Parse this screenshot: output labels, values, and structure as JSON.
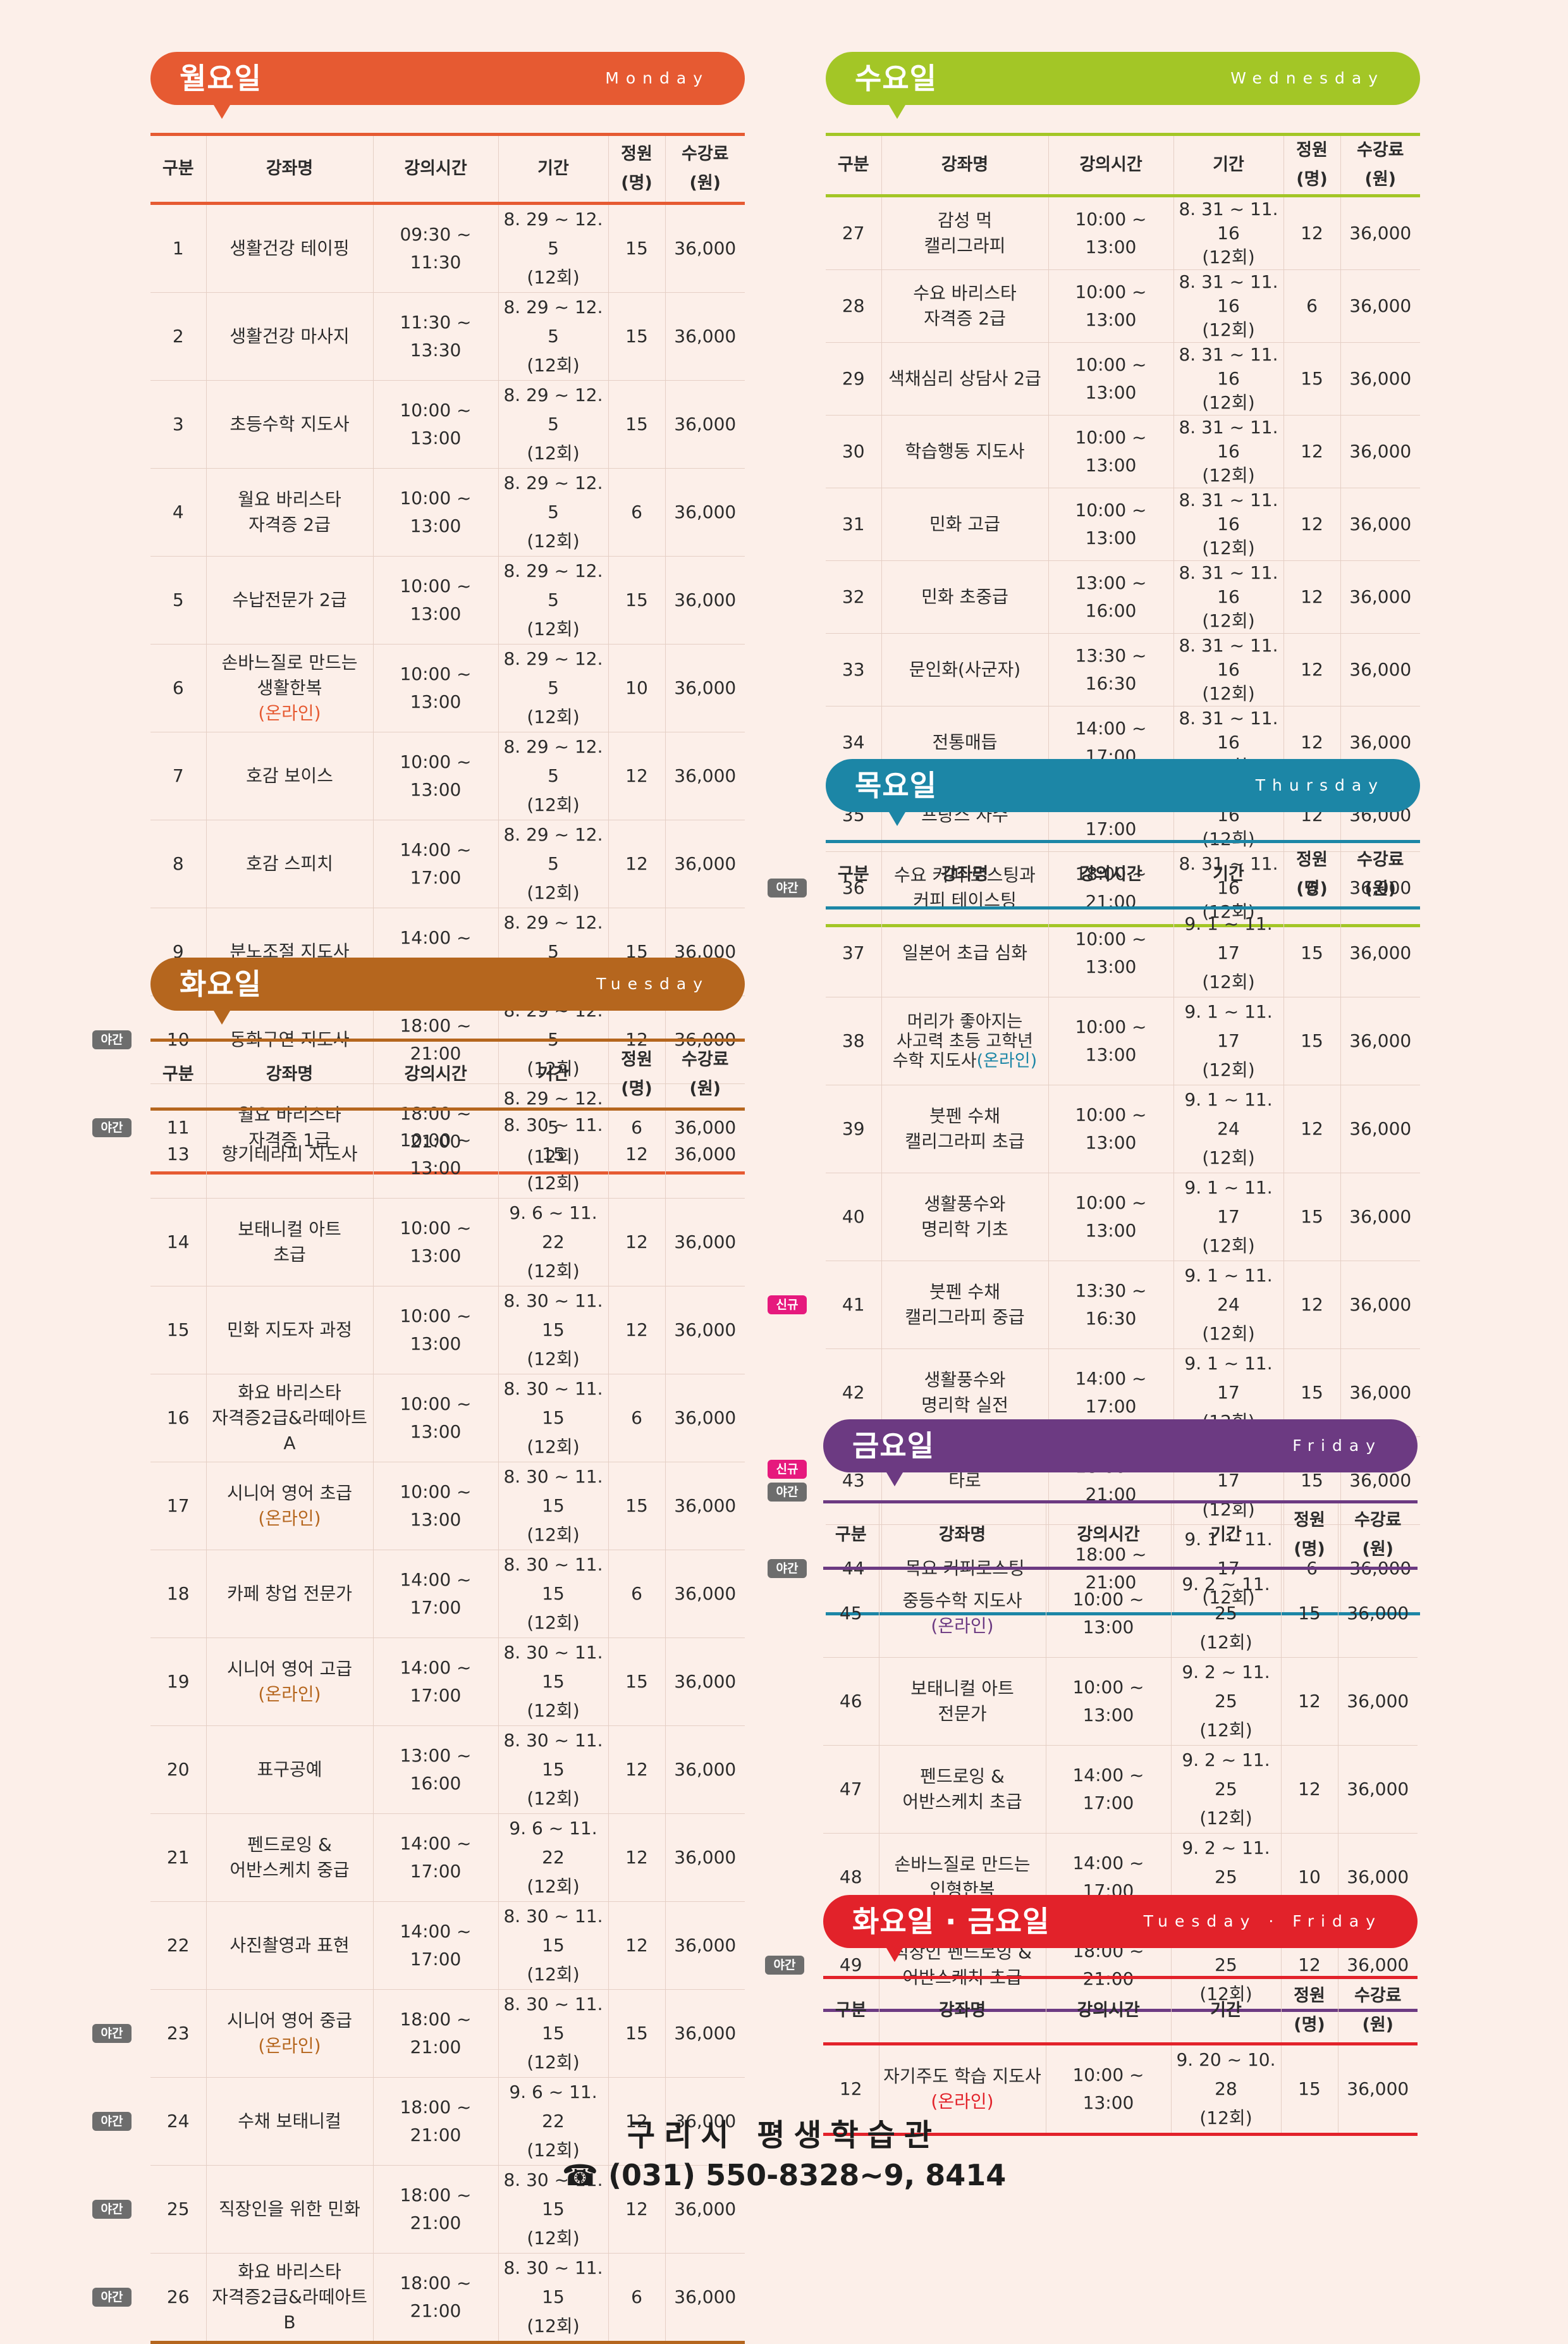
{
  "days": [
    {
      "id": "monday",
      "ko": "월요일",
      "en": "Monday",
      "color": "#e65a32",
      "online_color": "#e65a32",
      "headers": [
        "구분",
        "강좌명",
        "강의시간",
        "기간",
        "정원\n(명)",
        "수강료\n(원)"
      ],
      "rows": [
        {
          "badges": [],
          "no": "1",
          "name": "생활건강 테이핑",
          "time": "09:30 ~ 11:30",
          "period": "8. 29 ~ 12. 5\n(12회)",
          "cap": "15",
          "fee": "36,000"
        },
        {
          "badges": [],
          "no": "2",
          "name": "생활건강 마사지",
          "time": "11:30 ~ 13:30",
          "period": "8. 29 ~ 12. 5\n(12회)",
          "cap": "15",
          "fee": "36,000"
        },
        {
          "badges": [],
          "no": "3",
          "name": "초등수학 지도사",
          "time": "10:00 ~ 13:00",
          "period": "8. 29 ~ 12. 5\n(12회)",
          "cap": "15",
          "fee": "36,000"
        },
        {
          "badges": [],
          "no": "4",
          "name": "월요 바리스타\n자격증 2급",
          "time": "10:00 ~ 13:00",
          "period": "8. 29 ~ 12. 5\n(12회)",
          "cap": "6",
          "fee": "36,000"
        },
        {
          "badges": [],
          "no": "5",
          "name": "수납전문가 2급",
          "time": "10:00 ~ 13:00",
          "period": "8. 29 ~ 12. 5\n(12회)",
          "cap": "15",
          "fee": "36,000"
        },
        {
          "badges": [],
          "no": "6",
          "name": "손바느질로 만드는\n생활한복",
          "online": "(온라인)",
          "time": "10:00 ~ 13:00",
          "period": "8. 29 ~ 12. 5\n(12회)",
          "cap": "10",
          "fee": "36,000"
        },
        {
          "badges": [],
          "no": "7",
          "name": "호감 보이스",
          "time": "10:00 ~ 13:00",
          "period": "8. 29 ~ 12. 5\n(12회)",
          "cap": "12",
          "fee": "36,000"
        },
        {
          "badges": [],
          "no": "8",
          "name": "호감 스피치",
          "time": "14:00 ~ 17:00",
          "period": "8. 29 ~ 12. 5\n(12회)",
          "cap": "12",
          "fee": "36,000"
        },
        {
          "badges": [],
          "no": "9",
          "name": "분노조절 지도사",
          "time": "14:00 ~ 17:00",
          "period": "8. 29 ~ 12. 5\n(12회)",
          "cap": "15",
          "fee": "36,000"
        },
        {
          "badges": [
            "야간"
          ],
          "no": "10",
          "name": "동화구연 지도사",
          "time": "18:00 ~ 21:00",
          "period": "8. 29 ~ 12. 5\n(12회)",
          "cap": "12",
          "fee": "36,000"
        },
        {
          "badges": [
            "야간"
          ],
          "no": "11",
          "name": "월요 바리스타\n자격증 1급",
          "time": "18:00 ~ 21:00",
          "period": "8. 29 ~ 12. 5\n(12회)",
          "cap": "6",
          "fee": "36,000"
        }
      ]
    },
    {
      "id": "tuesday",
      "ko": "화요일",
      "en": "Tuesday",
      "color": "#b5661e",
      "online_color": "#b5661e",
      "headers": [
        "구분",
        "강좌명",
        "강의시간",
        "기간",
        "정원\n(명)",
        "수강료\n(원)"
      ],
      "rows": [
        {
          "badges": [],
          "no": "13",
          "name": "향기테라피 지도사",
          "time": "10:00 ~ 13:00",
          "period": "8. 30 ~ 11. 15\n(12회)",
          "cap": "12",
          "fee": "36,000"
        },
        {
          "badges": [],
          "no": "14",
          "name": "보태니컬 아트\n초급",
          "time": "10:00 ~ 13:00",
          "period": "9. 6 ~ 11. 22\n(12회)",
          "cap": "12",
          "fee": "36,000"
        },
        {
          "badges": [],
          "no": "15",
          "name": "민화 지도자 과정",
          "time": "10:00 ~ 13:00",
          "period": "8. 30 ~ 11. 15\n(12회)",
          "cap": "12",
          "fee": "36,000"
        },
        {
          "badges": [],
          "no": "16",
          "name": "화요 바리스타\n자격증2급&라떼아트A",
          "time": "10:00 ~ 13:00",
          "period": "8. 30 ~ 11. 15\n(12회)",
          "cap": "6",
          "fee": "36,000"
        },
        {
          "badges": [],
          "no": "17",
          "name": "시니어 영어 초급",
          "online": "(온라인)",
          "time": "10:00 ~ 13:00",
          "period": "8. 30 ~ 11. 15\n(12회)",
          "cap": "15",
          "fee": "36,000"
        },
        {
          "badges": [],
          "no": "18",
          "name": "카페 창업 전문가",
          "time": "14:00 ~ 17:00",
          "period": "8. 30 ~ 11. 15\n(12회)",
          "cap": "6",
          "fee": "36,000"
        },
        {
          "badges": [],
          "no": "19",
          "name": "시니어 영어 고급",
          "online": "(온라인)",
          "time": "14:00 ~ 17:00",
          "period": "8. 30 ~ 11. 15\n(12회)",
          "cap": "15",
          "fee": "36,000"
        },
        {
          "badges": [],
          "no": "20",
          "name": "표구공예",
          "time": "13:00 ~ 16:00",
          "period": "8. 30 ~ 11. 15\n(12회)",
          "cap": "12",
          "fee": "36,000"
        },
        {
          "badges": [],
          "no": "21",
          "name": "펜드로잉 &\n어반스케치 중급",
          "time": "14:00 ~ 17:00",
          "period": "9. 6 ~ 11. 22\n(12회)",
          "cap": "12",
          "fee": "36,000"
        },
        {
          "badges": [],
          "no": "22",
          "name": "사진촬영과 표현",
          "time": "14:00 ~ 17:00",
          "period": "8. 30 ~ 11. 15\n(12회)",
          "cap": "12",
          "fee": "36,000"
        },
        {
          "badges": [
            "야간"
          ],
          "no": "23",
          "name": "시니어 영어 중급",
          "online": "(온라인)",
          "time": "18:00 ~ 21:00",
          "period": "8. 30 ~ 11. 15\n(12회)",
          "cap": "15",
          "fee": "36,000"
        },
        {
          "badges": [
            "야간"
          ],
          "no": "24",
          "name": "수채 보태니컬",
          "time": "18:00 ~ 21:00",
          "period": "9. 6 ~ 11. 22\n(12회)",
          "cap": "12",
          "fee": "36,000"
        },
        {
          "badges": [
            "야간"
          ],
          "no": "25",
          "name": "직장인을 위한 민화",
          "time": "18:00 ~ 21:00",
          "period": "8. 30 ~ 11. 15\n(12회)",
          "cap": "12",
          "fee": "36,000"
        },
        {
          "badges": [
            "야간"
          ],
          "no": "26",
          "name": "화요 바리스타\n자격증2급&라떼아트B",
          "time": "18:00 ~ 21:00",
          "period": "8. 30 ~ 11. 15\n(12회)",
          "cap": "6",
          "fee": "36,000"
        }
      ]
    },
    {
      "id": "wednesday",
      "ko": "수요일",
      "en": "Wednesday",
      "color": "#a3c626",
      "online_color": "#a3c626",
      "headers": [
        "구분",
        "강좌명",
        "강의시간",
        "기간",
        "정원\n(명)",
        "수강료\n(원)"
      ],
      "rows": [
        {
          "badges": [],
          "no": "27",
          "name": "감성 먹\n캘리그라피",
          "time": "10:00 ~ 13:00",
          "period": "8. 31 ~ 11. 16\n(12회)",
          "cap": "12",
          "fee": "36,000"
        },
        {
          "badges": [],
          "no": "28",
          "name": "수요 바리스타\n자격증 2급",
          "time": "10:00 ~ 13:00",
          "period": "8. 31 ~ 11. 16\n(12회)",
          "cap": "6",
          "fee": "36,000"
        },
        {
          "badges": [],
          "no": "29",
          "name": "색채심리 상담사 2급",
          "time": "10:00 ~ 13:00",
          "period": "8. 31 ~ 11. 16\n(12회)",
          "cap": "15",
          "fee": "36,000"
        },
        {
          "badges": [],
          "no": "30",
          "name": "학습행동 지도사",
          "time": "10:00 ~ 13:00",
          "period": "8. 31 ~ 11. 16\n(12회)",
          "cap": "12",
          "fee": "36,000"
        },
        {
          "badges": [],
          "no": "31",
          "name": "민화 고급",
          "time": "10:00 ~ 13:00",
          "period": "8. 31 ~ 11. 16\n(12회)",
          "cap": "12",
          "fee": "36,000"
        },
        {
          "badges": [],
          "no": "32",
          "name": "민화 초중급",
          "time": "13:00 ~ 16:00",
          "period": "8. 31 ~ 11. 16\n(12회)",
          "cap": "12",
          "fee": "36,000"
        },
        {
          "badges": [],
          "no": "33",
          "name": "문인화(사군자)",
          "time": "13:30 ~ 16:30",
          "period": "8. 31 ~ 11. 16\n(12회)",
          "cap": "12",
          "fee": "36,000"
        },
        {
          "badges": [],
          "no": "34",
          "name": "전통매듭",
          "time": "14:00 ~ 17:00",
          "period": "8. 31 ~ 11. 16\n(12회)",
          "cap": "12",
          "fee": "36,000"
        },
        {
          "badges": [],
          "no": "35",
          "name": "프랑스 자수",
          "time": "14:00 ~ 17:00",
          "period": "8. 31 ~ 11. 16\n(12회)",
          "cap": "12",
          "fee": "36,000"
        },
        {
          "badges": [
            "야간"
          ],
          "no": "36",
          "name": "수요 커피 로스팅과\n커피 테이스팅",
          "time": "18:00 ~ 21:00",
          "period": "8. 31 ~ 11. 16\n(12회)",
          "cap": "6",
          "fee": "36,000"
        }
      ]
    },
    {
      "id": "thursday",
      "ko": "목요일",
      "en": "Thursday",
      "color": "#1c86a6",
      "online_color": "#1c86a6",
      "headers": [
        "구분",
        "강좌명",
        "강의시간",
        "기간",
        "정원\n(명)",
        "수강료\n(원)"
      ],
      "rows": [
        {
          "badges": [],
          "no": "37",
          "name": "일본어 초급 심화",
          "time": "10:00 ~ 13:00",
          "period": "9. 1 ~ 11. 17\n(12회)",
          "cap": "15",
          "fee": "36,000"
        },
        {
          "badges": [],
          "no": "38",
          "name": "머리가 좋아지는\n사고력 초등 고학년\n수학 지도사",
          "online": "(온라인)",
          "online_inline": true,
          "time": "10:00 ~ 13:00",
          "period": "9. 1 ~ 11. 17\n(12회)",
          "cap": "15",
          "fee": "36,000"
        },
        {
          "badges": [],
          "no": "39",
          "name": "붓펜 수채\n캘리그라피 초급",
          "time": "10:00 ~ 13:00",
          "period": "9. 1 ~ 11. 24\n(12회)",
          "cap": "12",
          "fee": "36,000"
        },
        {
          "badges": [],
          "no": "40",
          "name": "생활풍수와\n명리학 기초",
          "time": "10:00 ~ 13:00",
          "period": "9. 1 ~ 11. 17\n(12회)",
          "cap": "15",
          "fee": "36,000"
        },
        {
          "badges": [
            "신규"
          ],
          "no": "41",
          "name": "붓펜 수채\n캘리그라피 중급",
          "time": "13:30 ~ 16:30",
          "period": "9. 1 ~ 11. 24\n(12회)",
          "cap": "12",
          "fee": "36,000"
        },
        {
          "badges": [],
          "no": "42",
          "name": "생활풍수와\n명리학 실전",
          "time": "14:00 ~ 17:00",
          "period": "9. 1 ~ 11. 17\n(12회)",
          "cap": "15",
          "fee": "36,000"
        },
        {
          "badges": [
            "신규",
            "야간"
          ],
          "no": "43",
          "name": "타로",
          "time": "18:00 ~ 21:00",
          "period": "9. 1 ~ 11. 17\n(12회)",
          "cap": "15",
          "fee": "36,000"
        },
        {
          "badges": [
            "야간"
          ],
          "no": "44",
          "name": "목요 커피로스팅",
          "time": "18:00 ~ 21:00",
          "period": "9. 1 ~ 11. 17\n(12회)",
          "cap": "6",
          "fee": "36,000"
        }
      ]
    },
    {
      "id": "friday",
      "ko": "금요일",
      "en": "Friday",
      "color": "#6c3a82",
      "online_color": "#6c3a82",
      "headers": [
        "구분",
        "강좌명",
        "강의시간",
        "기간",
        "정원\n(명)",
        "수강료\n(원)"
      ],
      "rows": [
        {
          "badges": [],
          "no": "45",
          "name": "중등수학 지도사",
          "online": "(온라인)",
          "time": "10:00 ~ 13:00",
          "period": "9. 2 ~ 11. 25\n(12회)",
          "cap": "15",
          "fee": "36,000"
        },
        {
          "badges": [],
          "no": "46",
          "name": "보태니컬 아트\n전문가",
          "time": "10:00 ~ 13:00",
          "period": "9. 2 ~ 11. 25\n(12회)",
          "cap": "12",
          "fee": "36,000"
        },
        {
          "badges": [],
          "no": "47",
          "name": "펜드로잉 &\n어반스케치 초급",
          "time": "14:00 ~ 17:00",
          "period": "9. 2 ~ 11. 25\n(12회)",
          "cap": "12",
          "fee": "36,000"
        },
        {
          "badges": [],
          "no": "48",
          "name": "손바느질로 만드는\n인형한복",
          "time": "14:00 ~ 17:00",
          "period": "9. 2 ~ 11. 25\n(12회)",
          "cap": "10",
          "fee": "36,000"
        },
        {
          "badges": [
            "야간"
          ],
          "no": "49",
          "name": "직장인 펜드로잉 &\n어반스케치 초급",
          "time": "18:00 ~ 21:00",
          "period": "9. 2 ~ 11. 25\n(12회)",
          "cap": "12",
          "fee": "36,000"
        }
      ]
    },
    {
      "id": "tuefri",
      "ko": "화요일 · 금요일",
      "en": "Tuesday · Friday",
      "color": "#e2222a",
      "online_color": "#e2222a",
      "headers": [
        "구분",
        "강좌명",
        "강의시간",
        "기간",
        "정원\n(명)",
        "수강료\n(원)"
      ],
      "rows": [
        {
          "badges": [],
          "no": "12",
          "name": "자기주도 학습 지도사",
          "online": "(온라인)",
          "time": "10:00 ~ 13:00",
          "period": "9. 20 ~ 10. 28\n(12회)",
          "cap": "15",
          "fee": "36,000"
        }
      ]
    }
  ],
  "badge_labels": {
    "야간": "야간",
    "신규": "신규"
  },
  "footer": {
    "title": "구리시 평생학습관",
    "phone_icon": "phone-icon",
    "phone": "☎ (031) 550-8328~9, 8414"
  }
}
